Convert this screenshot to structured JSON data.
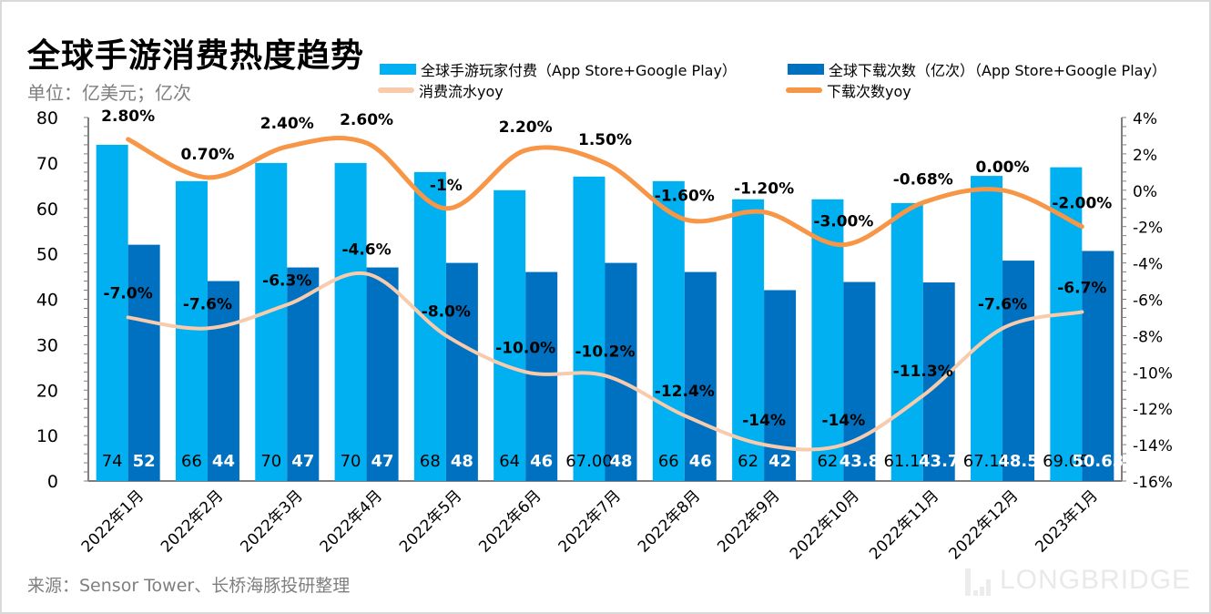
{
  "title": "全球手游消费热度趋势",
  "unit": "单位：亿美元；亿次",
  "source": "来源：Sensor Tower、长桥海豚投研整理",
  "watermark": "LONGBRIDGE",
  "colors": {
    "spend_bar": "#00b0f0",
    "download_bar": "#0070c0",
    "spend_yoy": "#f8cbad",
    "download_yoy": "#f79646"
  },
  "chart_data": {
    "type": "bar",
    "title": "全球手游消费热度趋势",
    "categories": [
      "2022年1月",
      "2022年2月",
      "2022年3月",
      "2022年4月",
      "2022年5月",
      "2022年6月",
      "2022年7月",
      "2022年8月",
      "2022年9月",
      "2022年10月",
      "2022年11月",
      "2022年12月",
      "2023年1月"
    ],
    "series": [
      {
        "name": "全球手游玩家付费（App Store+Google Play）",
        "type": "bar",
        "axis": "left",
        "values": [
          74,
          66,
          70,
          70,
          68,
          64,
          67.0,
          66,
          62,
          62,
          61.17,
          67.15,
          69.05
        ],
        "labels": [
          "74",
          "66",
          "70",
          "70",
          "68",
          "64",
          "67.00",
          "66",
          "62",
          "62",
          "61.17",
          "67.15",
          "69.05"
        ]
      },
      {
        "name": "全球下载次数（亿次）（App Store+Google Play）",
        "type": "bar",
        "axis": "left",
        "values": [
          52,
          44,
          47,
          47,
          48,
          46,
          48,
          46,
          42,
          43.8,
          43.7,
          48.5,
          50.63
        ],
        "labels": [
          "52",
          "44",
          "47",
          "47",
          "48",
          "46",
          "48",
          "46",
          "42",
          "43.8",
          "43.7",
          "48.5",
          "50.63"
        ]
      },
      {
        "name": "消费流水yoy",
        "type": "line",
        "axis": "right",
        "values": [
          -7.0,
          -7.6,
          -6.3,
          -4.6,
          -8.0,
          -10.0,
          -10.2,
          -12.4,
          -14,
          -14,
          -11.3,
          -7.6,
          -6.7
        ],
        "labels": [
          "-7.0%",
          "-7.6%",
          "-6.3%",
          "-4.6%",
          "-8.0%",
          "-10.0%",
          "-10.2%",
          "-12.4%",
          "-14%",
          "-14%",
          "-11.3%",
          "-7.6%",
          "-6.7%"
        ]
      },
      {
        "name": "下载次数yoy",
        "type": "line",
        "axis": "right",
        "values": [
          2.8,
          0.7,
          2.4,
          2.6,
          -1,
          2.2,
          1.5,
          -1.6,
          -1.2,
          -3.0,
          -0.68,
          0.0,
          -2.0
        ],
        "labels": [
          "2.80%",
          "0.70%",
          "2.40%",
          "2.60%",
          "-1%",
          "2.20%",
          "1.50%",
          "-1.60%",
          "-1.20%",
          "-3.00%",
          "-0.68%",
          "0.00%",
          "-2.00%"
        ]
      }
    ],
    "ylim_left": [
      0,
      80
    ],
    "yticks_left": [
      "0",
      "10",
      "20",
      "30",
      "40",
      "50",
      "60",
      "70",
      "80"
    ],
    "ylim_right": [
      -16,
      4
    ],
    "yticks_right": [
      "-16%",
      "-14%",
      "-12%",
      "-10%",
      "-8%",
      "-6%",
      "-4%",
      "-2%",
      "0%",
      "2%",
      "4%"
    ],
    "xlabel": "",
    "ylabel": "",
    "grid": false,
    "legend_position": "top"
  }
}
